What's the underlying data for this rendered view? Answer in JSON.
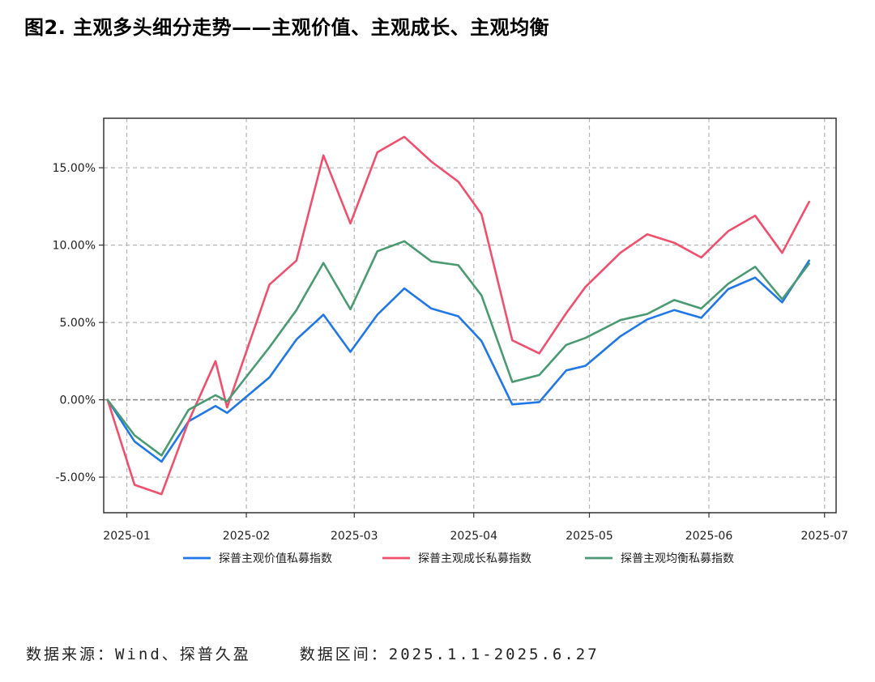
{
  "title": "图2. 主观多头细分走势——主观价值、主观成长、主观均衡",
  "footer": {
    "source": "数据来源：Wind、探普久盈",
    "range": "数据区间：2025.1.1-2025.6.27"
  },
  "chart_data": {
    "type": "line",
    "x_tick_labels": [
      "2025-01",
      "2025-02",
      "2025-03",
      "2025-04",
      "2025-05",
      "2025-06",
      "2025-07"
    ],
    "x_tick_dates": [
      "2025-01-01",
      "2025-02-01",
      "2025-03-01",
      "2025-04-01",
      "2025-05-01",
      "2025-06-01",
      "2025-07-01"
    ],
    "x_range": [
      "2024-12-26",
      "2025-07-04"
    ],
    "x": [
      "2024-12-27",
      "2025-01-03",
      "2025-01-10",
      "2025-01-17",
      "2025-01-24",
      "2025-01-27",
      "2025-02-07",
      "2025-02-14",
      "2025-02-21",
      "2025-02-28",
      "2025-03-07",
      "2025-03-14",
      "2025-03-21",
      "2025-03-28",
      "2025-04-03",
      "2025-04-11",
      "2025-04-18",
      "2025-04-25",
      "2025-04-30",
      "2025-05-09",
      "2025-05-16",
      "2025-05-23",
      "2025-05-30",
      "2025-06-06",
      "2025-06-13",
      "2025-06-20",
      "2025-06-27"
    ],
    "y_ticks": [
      -5,
      0,
      5,
      10,
      15
    ],
    "y_tick_labels": [
      "-5.00%",
      "0.00%",
      "5.00%",
      "10.00%",
      "15.00%"
    ],
    "ylim": [
      -7.3,
      18.2
    ],
    "y_unit": "%",
    "grid": true,
    "zero_line": true,
    "legend_position": "bottom",
    "series": [
      {
        "name": "探普主观价值私募指数",
        "color": "#1f77e8",
        "values": [
          0,
          -2.7,
          -4.0,
          -1.4,
          -0.4,
          -0.85,
          1.45,
          3.9,
          5.5,
          3.1,
          5.5,
          7.2,
          5.9,
          5.4,
          3.8,
          -0.3,
          -0.15,
          1.9,
          2.2,
          4.1,
          5.2,
          5.8,
          5.3,
          7.15,
          7.9,
          6.3,
          9.0
        ]
      },
      {
        "name": "探普主观成长私募指数",
        "color": "#f0506e",
        "values": [
          0,
          -5.5,
          -6.1,
          -1.4,
          2.5,
          -0.5,
          7.45,
          9.0,
          15.8,
          11.4,
          16.0,
          17.0,
          15.4,
          14.1,
          12.0,
          3.85,
          3.0,
          5.6,
          7.3,
          9.5,
          10.7,
          10.15,
          9.2,
          10.9,
          11.9,
          9.5,
          12.8
        ]
      },
      {
        "name": "探普主观均衡私募指数",
        "color": "#4a9a72",
        "values": [
          0,
          -2.3,
          -3.6,
          -0.65,
          0.3,
          -0.1,
          3.4,
          5.8,
          8.85,
          5.85,
          9.6,
          10.25,
          8.95,
          8.7,
          6.75,
          1.15,
          1.6,
          3.55,
          4.0,
          5.15,
          5.55,
          6.45,
          5.9,
          7.5,
          8.6,
          6.5,
          8.8
        ]
      }
    ]
  }
}
